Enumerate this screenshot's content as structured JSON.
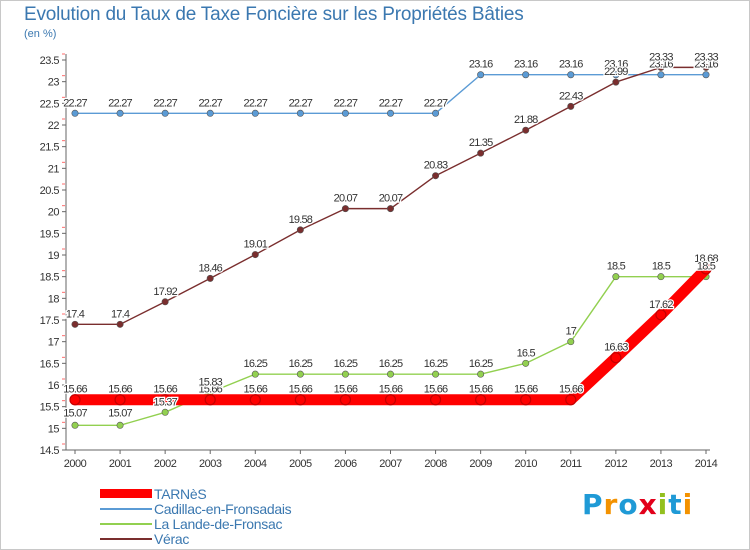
{
  "chart_data": {
    "type": "line",
    "title": "Evolution du Taux de Taxe Foncière sur les Propriétés Bâties",
    "unit_label": "(en %)",
    "x": [
      "2000",
      "2001",
      "2002",
      "2003",
      "2004",
      "2005",
      "2006",
      "2007",
      "2008",
      "2009",
      "2010",
      "2011",
      "2012",
      "2013",
      "2014"
    ],
    "ylim": [
      14.5,
      23.5
    ],
    "yticks": [
      14.5,
      15,
      15.5,
      16,
      16.5,
      17,
      17.5,
      18,
      18.5,
      19,
      19.5,
      20,
      20.5,
      21,
      21.5,
      22,
      22.5,
      23,
      23.5
    ],
    "grid": false,
    "legend_position": "bottom-left",
    "series": [
      {
        "name": "TARNèS",
        "color": "#ff0000",
        "values": [
          15.66,
          15.66,
          15.66,
          15.66,
          15.66,
          15.66,
          15.66,
          15.66,
          15.66,
          15.66,
          15.66,
          15.66,
          16.63,
          17.62,
          18.68
        ],
        "labels": [
          "15.66",
          "15.66",
          "15.66",
          "15.66",
          "15.66",
          "15.66",
          "15.66",
          "15.66",
          "15.66",
          "15.66",
          "15.66",
          "15.66",
          "16.63",
          "17.62",
          "18.68"
        ]
      },
      {
        "name": "Cadillac-en-Fronsadais",
        "color": "#5b9bd5",
        "values": [
          22.27,
          22.27,
          22.27,
          22.27,
          22.27,
          22.27,
          22.27,
          22.27,
          22.27,
          23.16,
          23.16,
          23.16,
          23.16,
          23.16,
          23.16
        ],
        "labels": [
          "22.27",
          "22.27",
          "22.27",
          "22.27",
          "22.27",
          "22.27",
          "22.27",
          "22.27",
          "22.27",
          "23.16",
          "23.16",
          "23.16",
          "23.16",
          "23.16",
          "23.16"
        ]
      },
      {
        "name": "La Lande-de-Fronsac",
        "color": "#92d050",
        "values": [
          15.07,
          15.07,
          15.37,
          15.83,
          16.25,
          16.25,
          16.25,
          16.25,
          16.25,
          16.25,
          16.5,
          17,
          18.5,
          18.5,
          18.5
        ],
        "labels": [
          "15.07",
          "15.07",
          "15.37",
          "15.83",
          "16.25",
          "16.25",
          "16.25",
          "16.25",
          "16.25",
          "16.25",
          "16.5",
          "17",
          "18.5",
          "18.5",
          "18.5"
        ]
      },
      {
        "name": "Vérac",
        "color": "#7a2e2e",
        "values": [
          17.4,
          17.4,
          17.92,
          18.46,
          19.01,
          19.58,
          20.07,
          20.07,
          20.83,
          21.35,
          21.88,
          22.43,
          22.99,
          23.33,
          23.33
        ],
        "labels": [
          "17.4",
          "17.4",
          "17.92",
          "18.46",
          "19.01",
          "19.58",
          "20.07",
          "20.07",
          "20.83",
          "21.35",
          "21.88",
          "22.43",
          "22.99",
          "23.33",
          "23.33"
        ]
      }
    ]
  },
  "brand": {
    "letters": [
      "P",
      "r",
      "o",
      "x",
      "i",
      "t",
      "i"
    ],
    "colors": [
      "#1f9ad6",
      "#f39200",
      "#1f9ad6",
      "#e2001a",
      "#93c01f",
      "#1f9ad6",
      "#f39200"
    ]
  }
}
